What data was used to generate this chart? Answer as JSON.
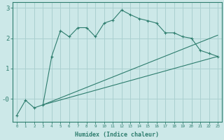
{
  "xlabel": "Humidex (Indice chaleur)",
  "background_color": "#cce8e8",
  "grid_color": "#aad0d0",
  "line_color": "#2e7d6e",
  "x_data": [
    0,
    1,
    2,
    3,
    4,
    5,
    6,
    7,
    8,
    9,
    10,
    11,
    12,
    13,
    14,
    15,
    16,
    17,
    18,
    19,
    20,
    21,
    22,
    23
  ],
  "line1_y": [
    -0.55,
    -0.05,
    -0.3,
    -0.2,
    1.4,
    2.25,
    2.05,
    2.35,
    2.35,
    2.05,
    2.5,
    2.6,
    2.93,
    2.78,
    2.65,
    2.58,
    2.5,
    2.18,
    2.18,
    2.05,
    2.0,
    1.6,
    1.5,
    1.4
  ],
  "line2_straight": true,
  "line2_start_x": 3,
  "line2_start_y": -0.2,
  "line2_end_x": 23,
  "line2_end_y": 1.4,
  "line3_start_x": 3,
  "line3_start_y": -0.2,
  "line3_end_x": 23,
  "line3_end_y": 2.1,
  "ylim": [
    -0.75,
    3.2
  ],
  "xlim": [
    -0.5,
    23.5
  ],
  "xticks": [
    0,
    1,
    2,
    3,
    4,
    5,
    6,
    7,
    8,
    9,
    10,
    11,
    12,
    13,
    14,
    15,
    16,
    17,
    18,
    19,
    20,
    21,
    22,
    23
  ]
}
